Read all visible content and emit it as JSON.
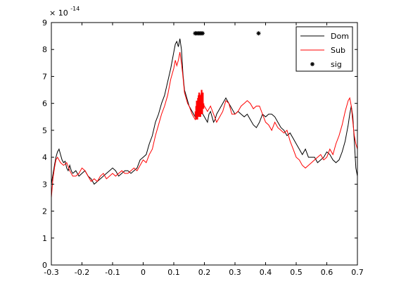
{
  "chart_data": {
    "type": "line",
    "title": "",
    "xlabel": "",
    "ylabel": "",
    "y_exponent_label": "× 10",
    "y_exponent_power": "-14",
    "xlim": [
      -0.3,
      0.7
    ],
    "ylim": [
      0,
      9
    ],
    "x_ticks": [
      -0.3,
      -0.2,
      -0.1,
      0,
      0.1,
      0.2,
      0.3,
      0.4,
      0.5,
      0.6,
      0.7
    ],
    "x_tick_labels": [
      "-0.3",
      "-0.2",
      "-0.1",
      "0",
      "0.1",
      "0.2",
      "0.3",
      "0.4",
      "0.5",
      "0.6",
      "0.7"
    ],
    "y_ticks": [
      0,
      1,
      2,
      3,
      4,
      5,
      6,
      7,
      8,
      9
    ],
    "y_tick_labels": [
      "0",
      "1",
      "2",
      "3",
      "4",
      "5",
      "6",
      "7",
      "8",
      "9"
    ],
    "grid": false,
    "legend_position": "top-right",
    "series": [
      {
        "name": "Dom",
        "color": "#000000",
        "style": "line",
        "x": [
          -0.3,
          -0.29,
          -0.285,
          -0.28,
          -0.275,
          -0.27,
          -0.265,
          -0.26,
          -0.255,
          -0.25,
          -0.245,
          -0.24,
          -0.235,
          -0.23,
          -0.22,
          -0.21,
          -0.2,
          -0.19,
          -0.18,
          -0.17,
          -0.16,
          -0.15,
          -0.14,
          -0.13,
          -0.12,
          -0.11,
          -0.1,
          -0.09,
          -0.08,
          -0.07,
          -0.06,
          -0.05,
          -0.04,
          -0.03,
          -0.02,
          -0.01,
          0.0,
          0.01,
          0.02,
          0.03,
          0.04,
          0.05,
          0.06,
          0.07,
          0.08,
          0.09,
          0.1,
          0.105,
          0.11,
          0.115,
          0.12,
          0.125,
          0.13,
          0.135,
          0.14,
          0.145,
          0.15,
          0.16,
          0.17,
          0.175,
          0.18,
          0.185,
          0.19,
          0.195,
          0.2,
          0.205,
          0.21,
          0.215,
          0.22,
          0.225,
          0.23,
          0.235,
          0.24,
          0.25,
          0.26,
          0.27,
          0.28,
          0.29,
          0.3,
          0.31,
          0.32,
          0.33,
          0.34,
          0.35,
          0.36,
          0.37,
          0.38,
          0.39,
          0.4,
          0.41,
          0.42,
          0.43,
          0.44,
          0.45,
          0.46,
          0.47,
          0.48,
          0.49,
          0.5,
          0.51,
          0.52,
          0.53,
          0.54,
          0.55,
          0.56,
          0.57,
          0.58,
          0.59,
          0.6,
          0.61,
          0.62,
          0.63,
          0.64,
          0.65,
          0.66,
          0.67,
          0.675,
          0.68,
          0.685,
          0.69,
          0.695,
          0.7
        ],
        "y": [
          3.0,
          3.7,
          4.0,
          4.2,
          4.3,
          4.1,
          3.9,
          3.8,
          3.85,
          3.6,
          3.5,
          3.7,
          3.5,
          3.4,
          3.5,
          3.3,
          3.4,
          3.5,
          3.3,
          3.2,
          3.0,
          3.1,
          3.2,
          3.3,
          3.4,
          3.5,
          3.6,
          3.5,
          3.3,
          3.4,
          3.5,
          3.5,
          3.4,
          3.5,
          3.6,
          3.9,
          4.0,
          4.1,
          4.5,
          4.8,
          5.3,
          5.6,
          6.0,
          6.3,
          6.8,
          7.3,
          7.9,
          8.2,
          8.3,
          8.1,
          8.4,
          8.0,
          7.1,
          6.5,
          6.3,
          6.1,
          5.9,
          5.7,
          5.5,
          5.7,
          5.9,
          6.0,
          5.8,
          5.6,
          5.5,
          5.4,
          5.3,
          5.6,
          5.7,
          5.5,
          5.3,
          5.4,
          5.6,
          5.8,
          6.0,
          6.2,
          6.0,
          5.8,
          5.6,
          5.7,
          5.6,
          5.5,
          5.6,
          5.4,
          5.2,
          5.1,
          5.3,
          5.6,
          5.5,
          5.6,
          5.6,
          5.5,
          5.3,
          5.1,
          5.0,
          4.8,
          4.9,
          4.7,
          4.5,
          4.3,
          4.1,
          4.3,
          4.0,
          4.0,
          4.0,
          3.8,
          3.9,
          4.0,
          4.2,
          4.1,
          3.9,
          3.8,
          3.9,
          4.2,
          4.6,
          5.2,
          5.6,
          5.9,
          5.5,
          4.6,
          3.6,
          3.3
        ]
      },
      {
        "name": "Sub",
        "color": "#ff0000",
        "style": "line",
        "x": [
          -0.3,
          -0.295,
          -0.29,
          -0.285,
          -0.28,
          -0.27,
          -0.26,
          -0.25,
          -0.24,
          -0.23,
          -0.22,
          -0.21,
          -0.2,
          -0.19,
          -0.18,
          -0.17,
          -0.16,
          -0.15,
          -0.14,
          -0.13,
          -0.12,
          -0.11,
          -0.1,
          -0.09,
          -0.08,
          -0.07,
          -0.06,
          -0.05,
          -0.04,
          -0.03,
          -0.02,
          -0.01,
          0.0,
          0.01,
          0.02,
          0.03,
          0.04,
          0.05,
          0.06,
          0.07,
          0.08,
          0.09,
          0.1,
          0.105,
          0.11,
          0.115,
          0.12,
          0.125,
          0.13,
          0.135,
          0.14,
          0.145,
          0.15,
          0.16,
          0.17,
          0.175,
          0.18,
          0.185,
          0.19,
          0.195,
          0.2,
          0.21,
          0.22,
          0.23,
          0.24,
          0.25,
          0.26,
          0.27,
          0.28,
          0.29,
          0.3,
          0.31,
          0.32,
          0.33,
          0.34,
          0.35,
          0.36,
          0.37,
          0.38,
          0.39,
          0.4,
          0.41,
          0.42,
          0.43,
          0.44,
          0.45,
          0.46,
          0.47,
          0.48,
          0.49,
          0.5,
          0.51,
          0.52,
          0.53,
          0.54,
          0.55,
          0.56,
          0.57,
          0.58,
          0.59,
          0.6,
          0.61,
          0.62,
          0.63,
          0.64,
          0.65,
          0.66,
          0.67,
          0.675,
          0.68,
          0.685,
          0.69,
          0.695,
          0.7
        ],
        "y": [
          2.5,
          3.2,
          3.6,
          3.9,
          4.0,
          3.8,
          3.7,
          3.8,
          3.5,
          3.3,
          3.3,
          3.4,
          3.6,
          3.5,
          3.3,
          3.1,
          3.2,
          3.1,
          3.3,
          3.4,
          3.2,
          3.3,
          3.4,
          3.3,
          3.4,
          3.5,
          3.4,
          3.4,
          3.5,
          3.6,
          3.5,
          3.7,
          3.9,
          3.8,
          4.1,
          4.3,
          4.8,
          5.2,
          5.6,
          5.9,
          6.3,
          6.9,
          7.3,
          7.6,
          7.4,
          7.6,
          7.9,
          7.5,
          7.0,
          6.4,
          6.2,
          6.0,
          5.9,
          5.6,
          5.4,
          5.6,
          6.0,
          6.2,
          6.4,
          6.0,
          5.9,
          5.7,
          5.9,
          5.6,
          5.3,
          5.5,
          5.7,
          6.1,
          6.0,
          5.6,
          5.6,
          5.7,
          5.9,
          6.0,
          6.1,
          6.0,
          5.8,
          5.9,
          5.9,
          5.6,
          5.3,
          5.2,
          5.0,
          5.3,
          5.1,
          5.0,
          4.9,
          5.0,
          4.6,
          4.3,
          4.0,
          3.9,
          3.7,
          3.6,
          3.7,
          3.8,
          3.9,
          4.0,
          4.1,
          3.9,
          4.0,
          4.3,
          4.1,
          4.5,
          4.8,
          5.2,
          5.7,
          6.1,
          6.2,
          5.9,
          5.3,
          4.8,
          4.5,
          4.3
        ]
      },
      {
        "name": "sig",
        "color": "#000000",
        "style": "markers",
        "marker": "asterisk",
        "x": [
          0.17,
          0.174,
          0.178,
          0.182,
          0.186,
          0.19,
          0.194,
          0.377
        ],
        "y": [
          8.6,
          8.6,
          8.6,
          8.6,
          8.6,
          8.6,
          8.6,
          8.6
        ]
      }
    ],
    "highlight_band": {
      "color": "#ff0000",
      "x": [
        0.171,
        0.173,
        0.175,
        0.177,
        0.179,
        0.181,
        0.183,
        0.185,
        0.187,
        0.189,
        0.191,
        0.193,
        0.195,
        0.197
      ],
      "y_top": [
        5.7,
        5.9,
        6.1,
        6.0,
        6.2,
        6.3,
        6.4,
        6.1,
        6.3,
        6.2,
        6.5,
        6.3,
        6.4,
        6.0
      ],
      "y_bottom": [
        5.5,
        5.4,
        5.5,
        5.4,
        5.6,
        5.5,
        5.6,
        5.5,
        5.5,
        5.6,
        5.7,
        5.6,
        5.8,
        5.8
      ]
    }
  }
}
